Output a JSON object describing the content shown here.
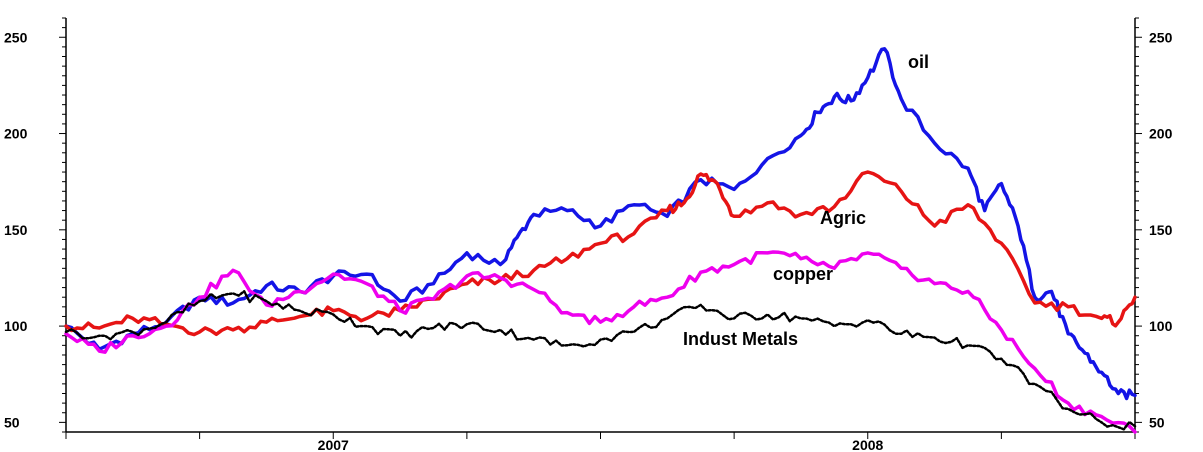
{
  "chart_data": {
    "type": "line",
    "title": "",
    "xlabel": "",
    "ylabel": "",
    "xlim": [
      0,
      32
    ],
    "ylim": [
      45,
      260
    ],
    "y_ticks": [
      50,
      100,
      150,
      200,
      250
    ],
    "x_tick_labels": [
      {
        "label": "2007",
        "x": 8
      },
      {
        "label": "2008",
        "x": 24
      }
    ],
    "grid": false,
    "legend": "none",
    "series": [
      {
        "name": "oil",
        "color": "#1414e6",
        "x": [
          0,
          1,
          2,
          3,
          4,
          5,
          6,
          7,
          8,
          9,
          10,
          11,
          12,
          13,
          13.5,
          14,
          15,
          16,
          17,
          18,
          19,
          20,
          21,
          22,
          22.5,
          23,
          23.5,
          24,
          24.5,
          25,
          26,
          27,
          27.5,
          28,
          28.5,
          29,
          29.5,
          30,
          30.5,
          31,
          31.5,
          32
        ],
        "y": [
          100,
          88,
          96,
          102,
          115,
          112,
          121,
          118,
          126,
          127,
          113,
          122,
          138,
          132,
          146,
          158,
          160,
          152,
          163,
          157,
          176,
          171,
          187,
          199,
          211,
          219,
          217,
          229,
          244,
          218,
          195,
          182,
          160,
          174,
          152,
          115,
          118,
          96,
          86,
          76,
          65,
          64
        ]
      },
      {
        "name": "Agric",
        "color": "#e61414",
        "x": [
          0,
          1,
          2,
          3,
          4,
          5,
          6,
          7,
          8,
          9,
          10,
          11,
          12,
          13,
          14,
          15,
          16,
          17,
          18,
          18.5,
          19,
          19.5,
          20,
          21,
          22,
          23,
          24,
          25,
          26,
          27,
          28,
          29,
          30,
          31,
          31.5,
          32
        ],
        "y": [
          100,
          99,
          104,
          101,
          97,
          98,
          102,
          105,
          108,
          104,
          108,
          114,
          122,
          124,
          129,
          135,
          143,
          148,
          160,
          164,
          179,
          174,
          157,
          164,
          158,
          162,
          180,
          170,
          152,
          163,
          143,
          112,
          110,
          104,
          102,
          115
        ]
      },
      {
        "name": "copper",
        "color": "#ee00ee",
        "x": [
          0,
          1,
          2,
          3,
          4,
          5,
          6,
          7,
          8,
          9,
          10,
          11,
          12,
          13,
          14,
          15,
          16,
          17,
          18,
          19,
          20,
          21,
          22,
          23,
          24,
          25,
          26,
          27,
          28,
          29,
          30,
          31,
          32
        ],
        "y": [
          96,
          87,
          95,
          100,
          115,
          129,
          111,
          118,
          127,
          122,
          108,
          114,
          126,
          125,
          119,
          107,
          102,
          110,
          115,
          128,
          132,
          138,
          135,
          130,
          138,
          130,
          122,
          118,
          98,
          78,
          60,
          53,
          45
        ]
      },
      {
        "name": "Indust Metals",
        "color": "#000000",
        "x": [
          0,
          1,
          2,
          3,
          4,
          5,
          6,
          7,
          8,
          9,
          10,
          11,
          12,
          13,
          14,
          15,
          16,
          17,
          18,
          19,
          20,
          21,
          22,
          23,
          24,
          25,
          26,
          27,
          28,
          29,
          30,
          31,
          32
        ],
        "y": [
          97,
          95,
          97,
          102,
          113,
          117,
          113,
          108,
          106,
          100,
          95,
          99,
          101,
          98,
          93,
          90,
          93,
          97,
          104,
          111,
          104,
          106,
          104,
          100,
          103,
          96,
          94,
          90,
          83,
          70,
          57,
          50,
          48
        ]
      }
    ],
    "annotations": [
      "oil",
      "Agric",
      "copper",
      "Indust Metals"
    ]
  }
}
